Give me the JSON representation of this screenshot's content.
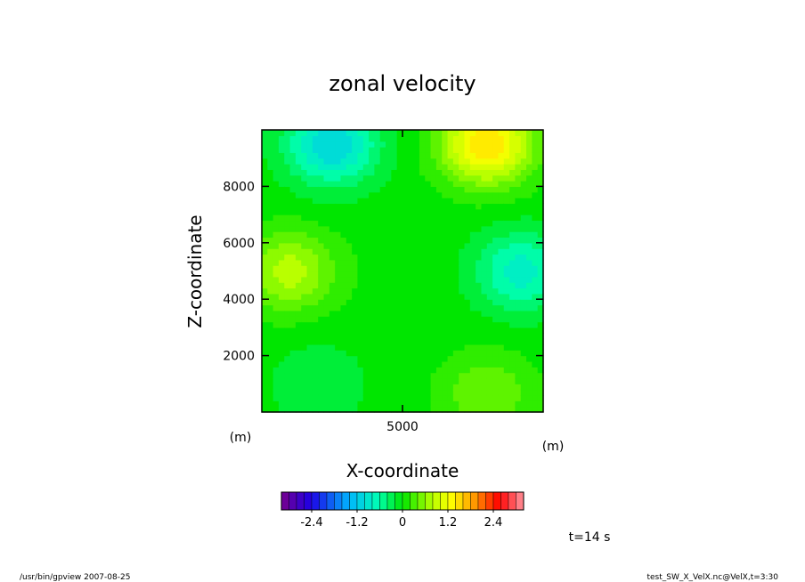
{
  "chart_data": {
    "type": "heatmap",
    "title": "zonal velocity",
    "xlabel": "X-coordinate",
    "ylabel": "Z-coordinate",
    "x_unit": "(m)",
    "y_unit": "(m)",
    "xlim": [
      0,
      10000
    ],
    "ylim": [
      0,
      10000
    ],
    "x_ticks": [
      5000
    ],
    "y_ticks": [
      2000,
      4000,
      6000,
      8000
    ],
    "colorbar": {
      "min": -3.2,
      "max": 3.2,
      "step": 0.2,
      "ticks": [
        -2.4,
        -1.2,
        0,
        1.2,
        2.4
      ],
      "tick_labels": [
        "-2.4",
        "-1.2",
        "0",
        "1.2",
        "2.4"
      ]
    },
    "field_features": [
      {
        "x": 2500,
        "z": 9500,
        "value": -1.1
      },
      {
        "x": 8000,
        "z": 9500,
        "value": 1.5
      },
      {
        "x": 1000,
        "z": 5000,
        "value": 0.8
      },
      {
        "x": 9200,
        "z": 5000,
        "value": -0.8
      },
      {
        "x": 2000,
        "z": 1000,
        "value": -0.3
      },
      {
        "x": 8000,
        "z": 700,
        "value": 0.5
      },
      {
        "x": 5000,
        "z": 5000,
        "value": 0.05
      }
    ],
    "time_label": "t=14 s"
  },
  "footer": {
    "left": "/usr/bin/gpview  2007-08-25",
    "right": "test_SW_X_VelX.nc@VelX,t=3:30"
  }
}
